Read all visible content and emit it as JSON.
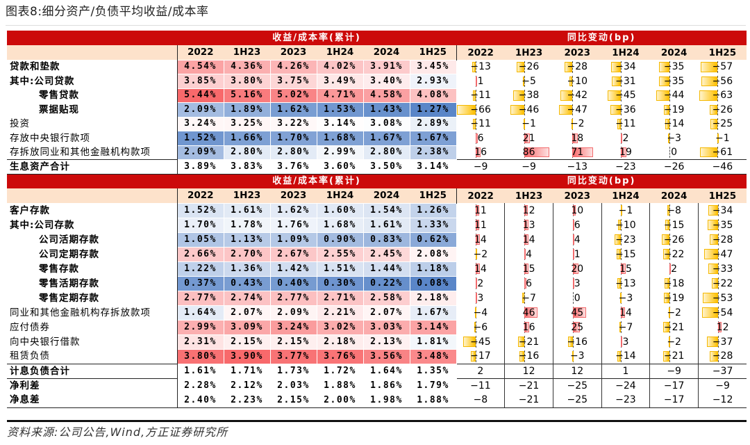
{
  "title": "图表8:细分资产/负债平均收益/成本率",
  "source": "资料来源:公司公告,Wind,方正证券研究所",
  "years": [
    "2022",
    "1H23",
    "2023",
    "1H24",
    "2024",
    "1H25"
  ],
  "colors": {
    "header": "#cc0a0a",
    "subheader": "#fde2cb",
    "heat_low": "#5a86c8",
    "heat_mid": "#ffffff",
    "heat_high": "#f8696b",
    "bar_negative": "#ffc000",
    "bar_positive": "#f8696b"
  },
  "sections": [
    {
      "header_rates": "收益/成本率(累计)",
      "header_change": "同比变动(bp)",
      "rows": [
        {
          "label": "贷款和垫款",
          "bold": true,
          "indent": 0,
          "heat": true,
          "rates": [
            "4.54%",
            "4.36%",
            "4.26%",
            "4.02%",
            "3.91%",
            "3.45%"
          ],
          "changes": [
            -13,
            -26,
            -28,
            -34,
            -35,
            -57
          ]
        },
        {
          "label": "其中:公司贷款",
          "bold": true,
          "indent": 0,
          "heat": true,
          "rates": [
            "3.85%",
            "3.80%",
            "3.75%",
            "3.49%",
            "3.40%",
            "2.93%"
          ],
          "changes": [
            1,
            -5,
            -10,
            -31,
            -35,
            -56
          ]
        },
        {
          "label": "零售贷款",
          "bold": true,
          "indent": 3,
          "heat": true,
          "rates": [
            "5.44%",
            "5.16%",
            "5.02%",
            "4.71%",
            "4.58%",
            "4.08%"
          ],
          "changes": [
            -11,
            -38,
            -42,
            -45,
            -44,
            -63
          ]
        },
        {
          "label": "票据贴现",
          "bold": true,
          "indent": 3,
          "heat": true,
          "rates": [
            "2.09%",
            "1.89%",
            "1.62%",
            "1.53%",
            "1.43%",
            "1.27%"
          ],
          "changes": [
            -66,
            -46,
            -47,
            -36,
            -19,
            -26
          ]
        },
        {
          "label": "投资",
          "bold": false,
          "indent": 0,
          "heat": true,
          "rates": [
            "3.24%",
            "3.25%",
            "3.22%",
            "3.14%",
            "3.08%",
            "2.89%"
          ],
          "changes": [
            -11,
            -1,
            -2,
            -11,
            -14,
            -25
          ]
        },
        {
          "label": "存放中央银行款项",
          "bold": false,
          "indent": 0,
          "heat": true,
          "rates": [
            "1.52%",
            "1.66%",
            "1.70%",
            "1.68%",
            "1.67%",
            "1.67%"
          ],
          "changes": [
            6,
            21,
            18,
            2,
            -3,
            -1
          ]
        },
        {
          "label": "存拆放同业和其他金融机构款项",
          "bold": false,
          "indent": 0,
          "heat": true,
          "rates": [
            "2.09%",
            "2.80%",
            "2.80%",
            "2.99%",
            "2.80%",
            "2.38%"
          ],
          "changes": [
            16,
            86,
            71,
            19,
            0,
            -61
          ]
        },
        {
          "label": "生息资产合计",
          "bold": true,
          "indent": 0,
          "heat": false,
          "total": true,
          "rates": [
            "3.89%",
            "3.83%",
            "3.76%",
            "3.60%",
            "3.50%",
            "3.14%"
          ],
          "changes": [
            -9,
            -9,
            -13,
            -23,
            -26,
            -46
          ]
        }
      ]
    },
    {
      "header_rates": "收益/成本率(累计)",
      "header_change": "同比变动(bp)",
      "rows": [
        {
          "label": "客户存款",
          "bold": true,
          "indent": 0,
          "heat": true,
          "rates": [
            "1.52%",
            "1.61%",
            "1.62%",
            "1.60%",
            "1.54%",
            "1.26%"
          ],
          "changes": [
            11,
            12,
            10,
            -1,
            -8,
            -34
          ]
        },
        {
          "label": "其中:公司存款",
          "bold": true,
          "indent": 0,
          "heat": true,
          "rates": [
            "1.70%",
            "1.78%",
            "1.76%",
            "1.68%",
            "1.61%",
            "1.33%"
          ],
          "changes": [
            11,
            13,
            6,
            -10,
            -15,
            -35
          ]
        },
        {
          "label": "公司活期存款",
          "bold": true,
          "indent": 3,
          "heat": true,
          "rates": [
            "1.05%",
            "1.13%",
            "1.09%",
            "0.90%",
            "0.83%",
            "0.62%"
          ],
          "changes": [
            14,
            14,
            4,
            -23,
            -26,
            -28
          ]
        },
        {
          "label": "公司定期存款",
          "bold": true,
          "indent": 3,
          "heat": true,
          "rates": [
            "2.66%",
            "2.70%",
            "2.67%",
            "2.55%",
            "2.45%",
            "2.08%"
          ],
          "changes": [
            -2,
            4,
            1,
            -15,
            -22,
            -47
          ]
        },
        {
          "label": "零售存款",
          "bold": true,
          "indent": 3,
          "heat": true,
          "rates": [
            "1.22%",
            "1.36%",
            "1.42%",
            "1.51%",
            "1.44%",
            "1.18%"
          ],
          "changes": [
            14,
            15,
            20,
            15,
            2,
            -33
          ]
        },
        {
          "label": "零售活期存款",
          "bold": true,
          "indent": 3,
          "heat": true,
          "rates": [
            "0.37%",
            "0.43%",
            "0.40%",
            "0.30%",
            "0.22%",
            "0.08%"
          ],
          "changes": [
            2,
            6,
            3,
            -13,
            -18,
            -22
          ]
        },
        {
          "label": "零售定期存款",
          "bold": true,
          "indent": 3,
          "heat": true,
          "rates": [
            "2.77%",
            "2.74%",
            "2.77%",
            "2.71%",
            "2.58%",
            "2.18%"
          ],
          "changes": [
            3,
            -7,
            0,
            -3,
            -19,
            -53
          ]
        },
        {
          "label": "同业和其他金融机构存拆放款项",
          "bold": false,
          "indent": 0,
          "heat": true,
          "rates": [
            "1.64%",
            "2.07%",
            "2.09%",
            "2.21%",
            "2.07%",
            "1.67%"
          ],
          "changes": [
            -4,
            46,
            45,
            14,
            -2,
            -54
          ]
        },
        {
          "label": "应付债券",
          "bold": false,
          "indent": 0,
          "heat": true,
          "rates": [
            "2.99%",
            "3.09%",
            "3.24%",
            "3.02%",
            "3.03%",
            "3.14%"
          ],
          "changes": [
            -6,
            16,
            25,
            -7,
            -21,
            12
          ]
        },
        {
          "label": "向中央银行借款",
          "bold": false,
          "indent": 0,
          "heat": true,
          "rates": [
            "2.31%",
            "2.15%",
            "2.15%",
            "2.18%",
            "2.13%",
            "1.81%"
          ],
          "changes": [
            -45,
            -21,
            -16,
            3,
            -2,
            -37
          ]
        },
        {
          "label": "租赁负债",
          "bold": false,
          "indent": 0,
          "heat": true,
          "rates": [
            "3.80%",
            "3.90%",
            "3.77%",
            "3.76%",
            "3.56%",
            "3.48%"
          ],
          "changes": [
            -17,
            -16,
            -3,
            -14,
            -21,
            -28
          ]
        },
        {
          "label": "计息负债合计",
          "bold": true,
          "indent": 0,
          "heat": false,
          "total": true,
          "rates": [
            "1.61%",
            "1.71%",
            "1.73%",
            "1.72%",
            "1.64%",
            "1.35%"
          ],
          "changes": [
            2,
            12,
            12,
            1,
            -9,
            -37
          ]
        },
        {
          "label": "净利差",
          "bold": true,
          "indent": 0,
          "heat": false,
          "total": true,
          "rates": [
            "2.28%",
            "2.12%",
            "2.03%",
            "1.88%",
            "1.86%",
            "1.79%"
          ],
          "changes": [
            -11,
            -21,
            -25,
            -24,
            -17,
            -9
          ]
        },
        {
          "label": "净息差",
          "bold": true,
          "indent": 0,
          "heat": false,
          "rates": [
            "2.40%",
            "2.23%",
            "2.15%",
            "2.00%",
            "1.98%",
            "1.88%"
          ],
          "changes": [
            -8,
            -21,
            -25,
            -23,
            -17,
            -12
          ]
        }
      ]
    }
  ]
}
